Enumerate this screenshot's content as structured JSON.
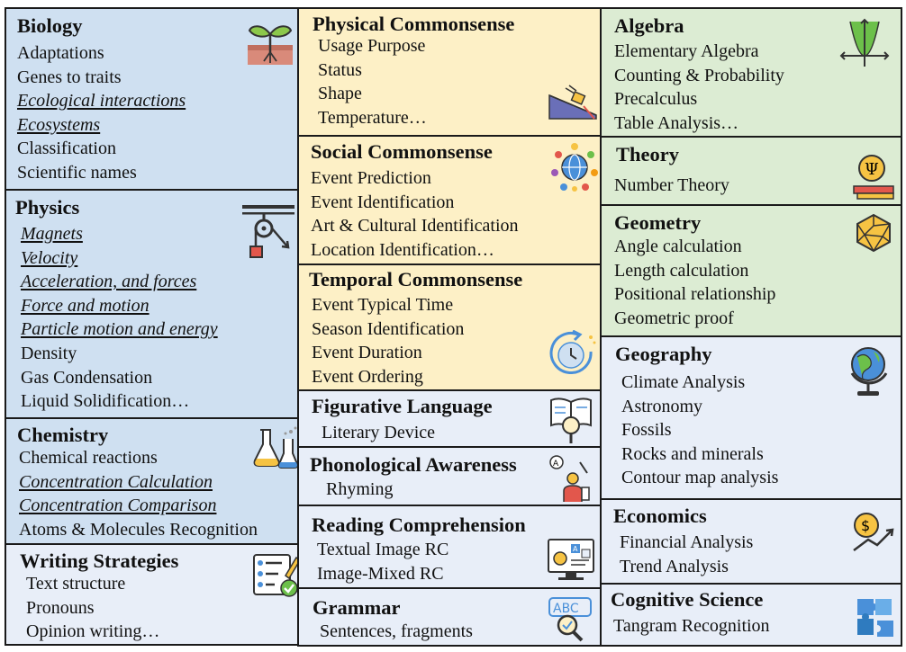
{
  "colors": {
    "blue": "#cfe0f1",
    "yellow": "#fdf0c6",
    "green": "#dcecd3",
    "lightblue": "#e8eef8",
    "border": "#1a1a1a"
  },
  "cells": [
    {
      "id": "biology",
      "title": "Biology",
      "color": "blue",
      "icon": "plant-sprout-icon",
      "items": [
        {
          "text": "Adaptations"
        },
        {
          "text": "Genes to traits"
        },
        {
          "text": "Ecological interactions",
          "style": "underline-italic"
        },
        {
          "text": "Ecosystems",
          "style": "underline-italic"
        },
        {
          "text": "Classification"
        },
        {
          "text": "Scientific names"
        }
      ]
    },
    {
      "id": "physics",
      "title": "Physics",
      "color": "blue",
      "icon": "pulley-icon",
      "items": [
        {
          "text": "Magnets",
          "style": "underline-italic"
        },
        {
          "text": "Velocity",
          "style": "underline-italic"
        },
        {
          "text": "Acceleration, and forces",
          "style": "underline-italic"
        },
        {
          "text": "Force and motion",
          "style": "underline-italic"
        },
        {
          "text": "Particle motion and energy",
          "style": "underline-italic"
        },
        {
          "text": "Density"
        },
        {
          "text": "Gas Condensation"
        },
        {
          "text": "Liquid Solidification…"
        }
      ]
    },
    {
      "id": "chemistry",
      "title": "Chemistry",
      "color": "blue",
      "icon": "flask-icon",
      "items": [
        {
          "text": "Chemical reactions"
        },
        {
          "text": "Concentration Calculation",
          "style": "underline-italic"
        },
        {
          "text": "Concentration Comparison",
          "style": "underline-italic"
        },
        {
          "text": "Atoms & Molecules Recognition"
        }
      ]
    },
    {
      "id": "writing",
      "title": "Writing Strategies",
      "color": "lightblue",
      "icon": "checklist-pencil-icon",
      "items": [
        {
          "text": "Text structure"
        },
        {
          "text": "Pronouns"
        },
        {
          "text": "Opinion writing…"
        }
      ]
    },
    {
      "id": "physical-cs",
      "title": "Physical Commonsense",
      "color": "yellow",
      "icon": "incline-plane-icon",
      "items": [
        {
          "text": "Usage Purpose"
        },
        {
          "text": "Status"
        },
        {
          "text": "Shape"
        },
        {
          "text": "Temperature…"
        }
      ]
    },
    {
      "id": "social-cs",
      "title": "Social Commonsense",
      "color": "yellow",
      "icon": "globe-people-icon",
      "items": [
        {
          "text": "Event Prediction"
        },
        {
          "text": "Event Identification"
        },
        {
          "text": "Art & Cultural Identification"
        },
        {
          "text": "Location Identification…"
        }
      ]
    },
    {
      "id": "temporal-cs",
      "title": "Temporal Commonsense",
      "color": "yellow",
      "icon": "clock-refresh-icon",
      "items": [
        {
          "text": "Event Typical Time"
        },
        {
          "text": "Season Identification"
        },
        {
          "text": "Event Duration"
        },
        {
          "text": "Event Ordering"
        }
      ]
    },
    {
      "id": "figurative",
      "title": "Figurative Language",
      "color": "lightblue",
      "icon": "book-magnifier-icon",
      "items": [
        {
          "text": "Literary Device"
        }
      ]
    },
    {
      "id": "phonological",
      "title": "Phonological Awareness",
      "color": "lightblue",
      "icon": "speaking-person-icon",
      "items": [
        {
          "text": "Rhyming"
        }
      ]
    },
    {
      "id": "reading",
      "title": "Reading Comprehension",
      "color": "lightblue",
      "icon": "screen-reader-icon",
      "items": [
        {
          "text": "Textual Image RC"
        },
        {
          "text": "Image-Mixed RC"
        }
      ]
    },
    {
      "id": "grammar",
      "title": "Grammar",
      "color": "lightblue",
      "icon": "abc-magnifier-icon",
      "items": [
        {
          "text": "Sentences, fragments"
        }
      ]
    },
    {
      "id": "algebra",
      "title": "Algebra",
      "color": "green",
      "icon": "parabola-graph-icon",
      "items": [
        {
          "text": "Elementary Algebra"
        },
        {
          "text": "Counting & Probability"
        },
        {
          "text": "Precalculus"
        },
        {
          "text": "Table Analysis…"
        }
      ]
    },
    {
      "id": "theory",
      "title": "Theory",
      "color": "green",
      "icon": "psi-books-icon",
      "items": [
        {
          "text": "Number Theory"
        }
      ]
    },
    {
      "id": "geometry",
      "title": "Geometry",
      "color": "green",
      "icon": "polyhedron-icon",
      "items": [
        {
          "text": "Angle calculation"
        },
        {
          "text": "Length calculation"
        },
        {
          "text": "Positional relationship"
        },
        {
          "text": "Geometric proof"
        }
      ]
    },
    {
      "id": "geography",
      "title": "Geography",
      "color": "lightblue",
      "icon": "desk-globe-icon",
      "items": [
        {
          "text": "Climate Analysis"
        },
        {
          "text": "Astronomy"
        },
        {
          "text": "Fossils"
        },
        {
          "text": "Rocks and minerals"
        },
        {
          "text": "Contour map analysis"
        }
      ]
    },
    {
      "id": "economics",
      "title": "Economics",
      "color": "lightblue",
      "icon": "dollar-trend-icon",
      "items": [
        {
          "text": "Financial Analysis"
        },
        {
          "text": "Trend Analysis"
        }
      ]
    },
    {
      "id": "cognitive",
      "title": "Cognitive Science",
      "color": "lightblue",
      "icon": "puzzle-pieces-icon",
      "items": [
        {
          "text": "Tangram Recognition"
        }
      ]
    }
  ]
}
